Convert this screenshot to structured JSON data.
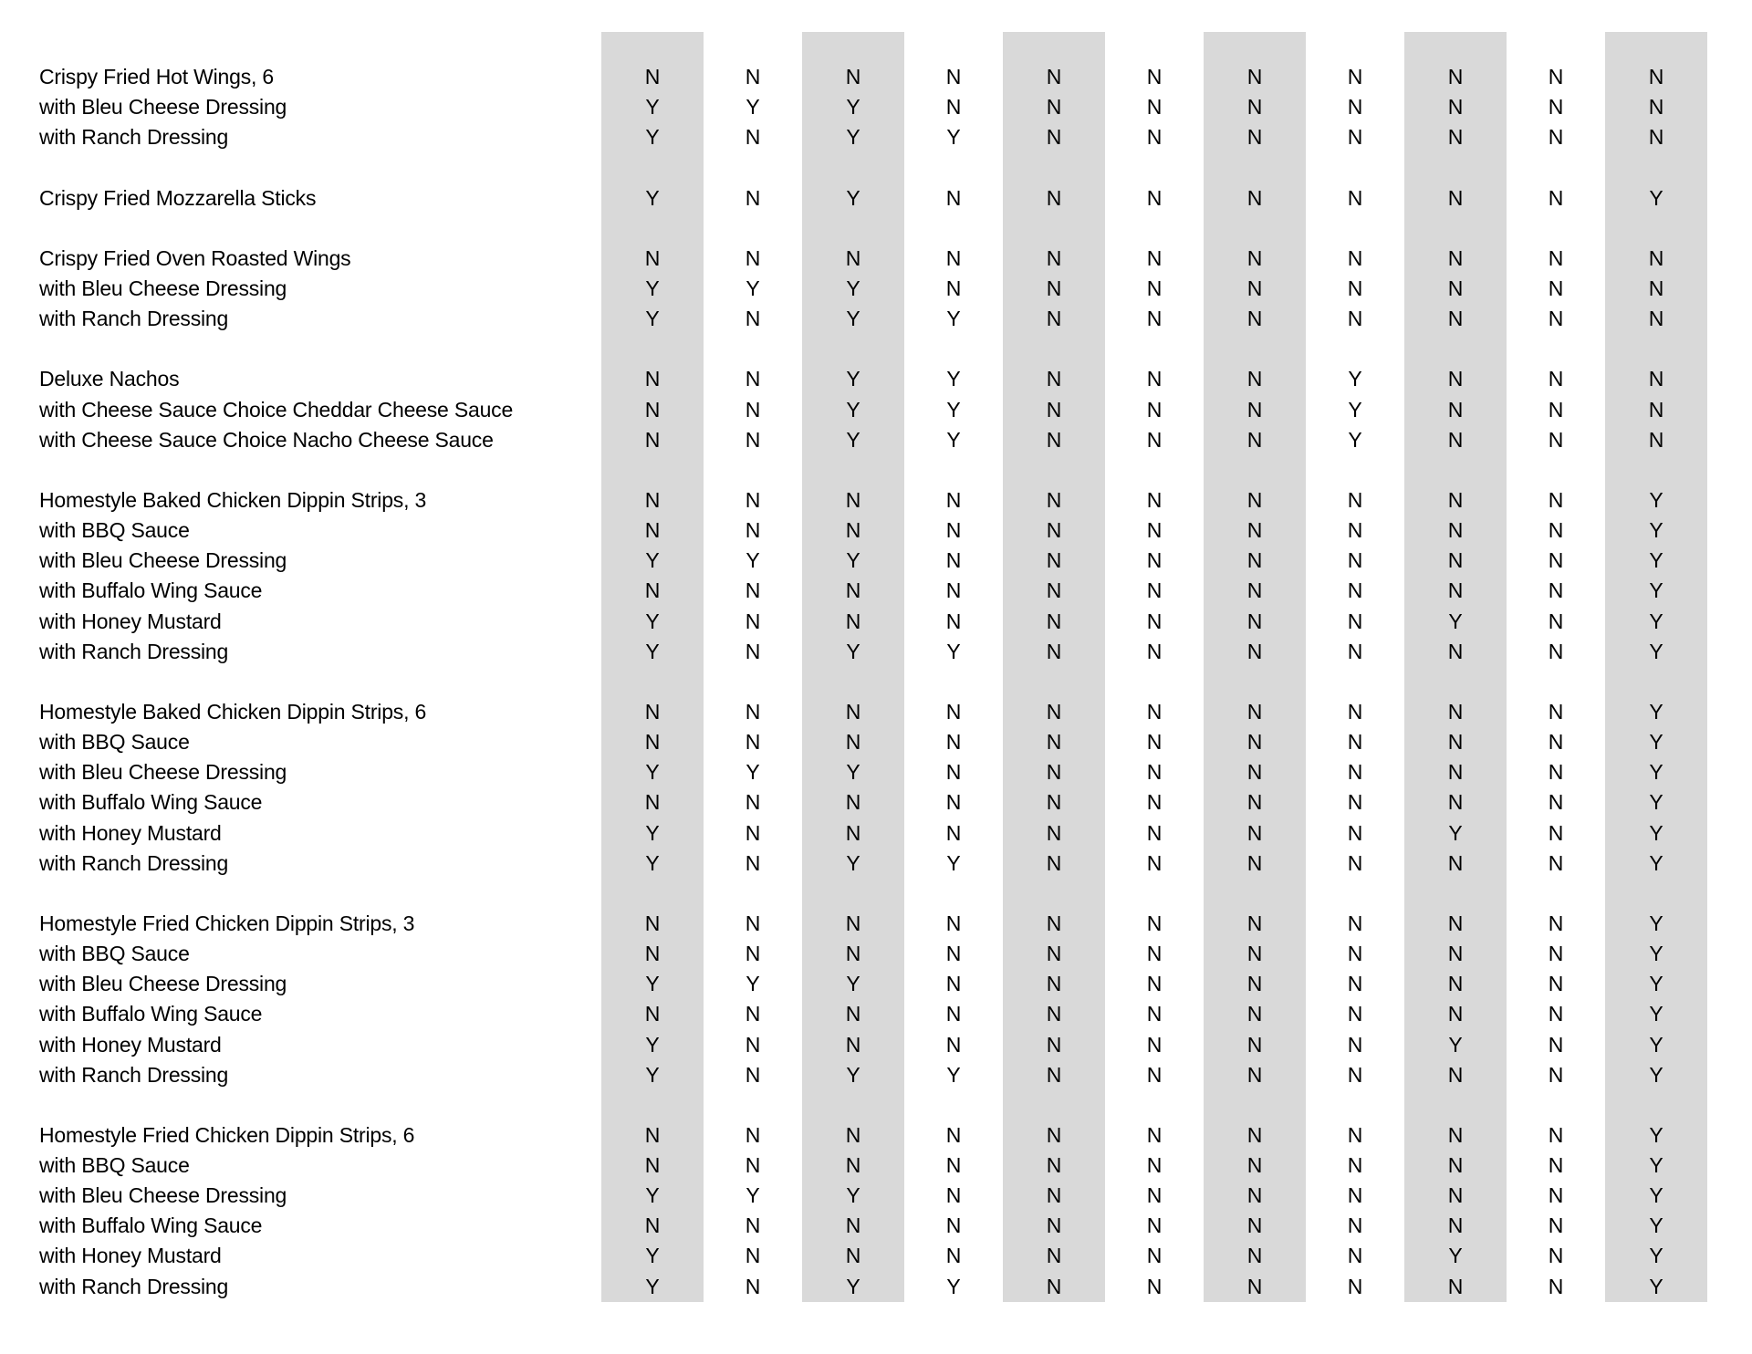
{
  "table": {
    "band_color": "#d9d9d9",
    "text_color": "#000000",
    "columns_count": 11,
    "shaded_columns": [
      1,
      3,
      5,
      7,
      9,
      11
    ],
    "sections": [
      {
        "rows": [
          {
            "label": "Crispy Fried Hot Wings, 6",
            "values": [
              "N",
              "N",
              "N",
              "N",
              "N",
              "N",
              "N",
              "N",
              "N",
              "N",
              "N"
            ]
          },
          {
            "label": "with Bleu Cheese Dressing",
            "values": [
              "Y",
              "Y",
              "Y",
              "N",
              "N",
              "N",
              "N",
              "N",
              "N",
              "N",
              "N"
            ]
          },
          {
            "label": "with Ranch Dressing",
            "values": [
              "Y",
              "N",
              "Y",
              "Y",
              "N",
              "N",
              "N",
              "N",
              "N",
              "N",
              "N"
            ]
          }
        ]
      },
      {
        "rows": [
          {
            "label": "Crispy Fried Mozzarella Sticks",
            "values": [
              "Y",
              "N",
              "Y",
              "N",
              "N",
              "N",
              "N",
              "N",
              "N",
              "N",
              "Y"
            ]
          }
        ]
      },
      {
        "rows": [
          {
            "label": "Crispy Fried Oven Roasted Wings",
            "values": [
              "N",
              "N",
              "N",
              "N",
              "N",
              "N",
              "N",
              "N",
              "N",
              "N",
              "N"
            ]
          },
          {
            "label": "with Bleu Cheese Dressing",
            "values": [
              "Y",
              "Y",
              "Y",
              "N",
              "N",
              "N",
              "N",
              "N",
              "N",
              "N",
              "N"
            ]
          },
          {
            "label": "with Ranch Dressing",
            "values": [
              "Y",
              "N",
              "Y",
              "Y",
              "N",
              "N",
              "N",
              "N",
              "N",
              "N",
              "N"
            ]
          }
        ]
      },
      {
        "rows": [
          {
            "label": "Deluxe Nachos",
            "values": [
              "N",
              "N",
              "Y",
              "Y",
              "N",
              "N",
              "N",
              "Y",
              "N",
              "N",
              "N"
            ]
          },
          {
            "label": "with Cheese Sauce Choice Cheddar Cheese Sauce",
            "values": [
              "N",
              "N",
              "Y",
              "Y",
              "N",
              "N",
              "N",
              "Y",
              "N",
              "N",
              "N"
            ]
          },
          {
            "label": "with Cheese Sauce Choice Nacho Cheese Sauce",
            "values": [
              "N",
              "N",
              "Y",
              "Y",
              "N",
              "N",
              "N",
              "Y",
              "N",
              "N",
              "N"
            ]
          }
        ]
      },
      {
        "rows": [
          {
            "label": "Homestyle Baked Chicken Dippin Strips, 3",
            "values": [
              "N",
              "N",
              "N",
              "N",
              "N",
              "N",
              "N",
              "N",
              "N",
              "N",
              "Y"
            ]
          },
          {
            "label": "with BBQ Sauce",
            "values": [
              "N",
              "N",
              "N",
              "N",
              "N",
              "N",
              "N",
              "N",
              "N",
              "N",
              "Y"
            ]
          },
          {
            "label": "with Bleu Cheese Dressing",
            "values": [
              "Y",
              "Y",
              "Y",
              "N",
              "N",
              "N",
              "N",
              "N",
              "N",
              "N",
              "Y"
            ]
          },
          {
            "label": "with Buffalo Wing Sauce",
            "values": [
              "N",
              "N",
              "N",
              "N",
              "N",
              "N",
              "N",
              "N",
              "N",
              "N",
              "Y"
            ]
          },
          {
            "label": "with Honey Mustard",
            "values": [
              "Y",
              "N",
              "N",
              "N",
              "N",
              "N",
              "N",
              "N",
              "Y",
              "N",
              "Y"
            ]
          },
          {
            "label": "with Ranch Dressing",
            "values": [
              "Y",
              "N",
              "Y",
              "Y",
              "N",
              "N",
              "N",
              "N",
              "N",
              "N",
              "Y"
            ]
          }
        ]
      },
      {
        "rows": [
          {
            "label": "Homestyle Baked Chicken Dippin Strips, 6",
            "values": [
              "N",
              "N",
              "N",
              "N",
              "N",
              "N",
              "N",
              "N",
              "N",
              "N",
              "Y"
            ]
          },
          {
            "label": "with BBQ Sauce",
            "values": [
              "N",
              "N",
              "N",
              "N",
              "N",
              "N",
              "N",
              "N",
              "N",
              "N",
              "Y"
            ]
          },
          {
            "label": "with Bleu Cheese Dressing",
            "values": [
              "Y",
              "Y",
              "Y",
              "N",
              "N",
              "N",
              "N",
              "N",
              "N",
              "N",
              "Y"
            ]
          },
          {
            "label": "with Buffalo Wing Sauce",
            "values": [
              "N",
              "N",
              "N",
              "N",
              "N",
              "N",
              "N",
              "N",
              "N",
              "N",
              "Y"
            ]
          },
          {
            "label": "with Honey Mustard",
            "values": [
              "Y",
              "N",
              "N",
              "N",
              "N",
              "N",
              "N",
              "N",
              "Y",
              "N",
              "Y"
            ]
          },
          {
            "label": "with Ranch Dressing",
            "values": [
              "Y",
              "N",
              "Y",
              "Y",
              "N",
              "N",
              "N",
              "N",
              "N",
              "N",
              "Y"
            ]
          }
        ]
      },
      {
        "rows": [
          {
            "label": "Homestyle Fried Chicken Dippin Strips, 3",
            "values": [
              "N",
              "N",
              "N",
              "N",
              "N",
              "N",
              "N",
              "N",
              "N",
              "N",
              "Y"
            ]
          },
          {
            "label": "with BBQ Sauce",
            "values": [
              "N",
              "N",
              "N",
              "N",
              "N",
              "N",
              "N",
              "N",
              "N",
              "N",
              "Y"
            ]
          },
          {
            "label": "with Bleu Cheese Dressing",
            "values": [
              "Y",
              "Y",
              "Y",
              "N",
              "N",
              "N",
              "N",
              "N",
              "N",
              "N",
              "Y"
            ]
          },
          {
            "label": "with Buffalo Wing Sauce",
            "values": [
              "N",
              "N",
              "N",
              "N",
              "N",
              "N",
              "N",
              "N",
              "N",
              "N",
              "Y"
            ]
          },
          {
            "label": "with Honey Mustard",
            "values": [
              "Y",
              "N",
              "N",
              "N",
              "N",
              "N",
              "N",
              "N",
              "Y",
              "N",
              "Y"
            ]
          },
          {
            "label": "with Ranch Dressing",
            "values": [
              "Y",
              "N",
              "Y",
              "Y",
              "N",
              "N",
              "N",
              "N",
              "N",
              "N",
              "Y"
            ]
          }
        ]
      },
      {
        "rows": [
          {
            "label": "Homestyle Fried Chicken Dippin Strips, 6",
            "values": [
              "N",
              "N",
              "N",
              "N",
              "N",
              "N",
              "N",
              "N",
              "N",
              "N",
              "Y"
            ]
          },
          {
            "label": "with BBQ Sauce",
            "values": [
              "N",
              "N",
              "N",
              "N",
              "N",
              "N",
              "N",
              "N",
              "N",
              "N",
              "Y"
            ]
          },
          {
            "label": "with Bleu Cheese Dressing",
            "values": [
              "Y",
              "Y",
              "Y",
              "N",
              "N",
              "N",
              "N",
              "N",
              "N",
              "N",
              "Y"
            ]
          },
          {
            "label": "with Buffalo Wing Sauce",
            "values": [
              "N",
              "N",
              "N",
              "N",
              "N",
              "N",
              "N",
              "N",
              "N",
              "N",
              "Y"
            ]
          },
          {
            "label": "with Honey Mustard",
            "values": [
              "Y",
              "N",
              "N",
              "N",
              "N",
              "N",
              "N",
              "N",
              "Y",
              "N",
              "Y"
            ]
          },
          {
            "label": "with Ranch Dressing",
            "values": [
              "Y",
              "N",
              "Y",
              "Y",
              "N",
              "N",
              "N",
              "N",
              "N",
              "N",
              "Y"
            ]
          }
        ]
      }
    ]
  }
}
